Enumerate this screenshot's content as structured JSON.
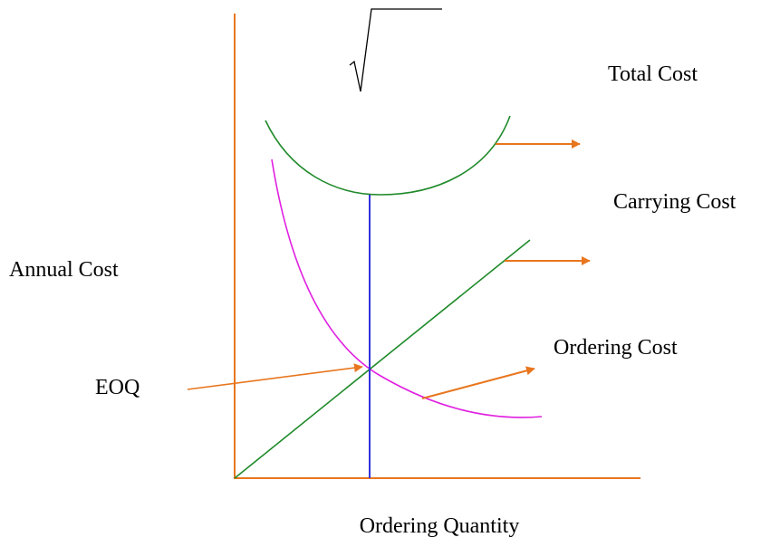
{
  "labels": {
    "total_cost": "Total Cost",
    "carrying_cost": "Carrying Cost",
    "annual_cost": "Annual Cost",
    "ordering_cost": "Ordering Cost",
    "eoq": "EOQ",
    "x_axis": "Ordering Quantity"
  }
}
